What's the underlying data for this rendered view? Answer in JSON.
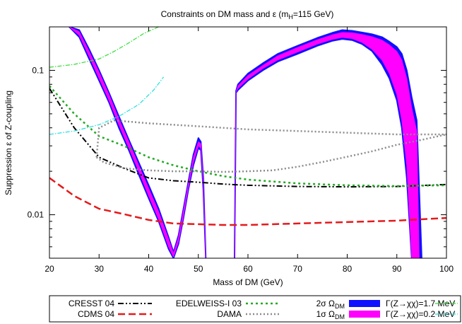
{
  "chart_data": {
    "type": "line",
    "title": "Constraints on DM mass and ε (m",
    "title_sub": "H",
    "title_tail": "=115 GeV)",
    "xlabel": "Mass of DM (GeV)",
    "ylabel": "Suppression ε of Z-coupling",
    "xlim": [
      20,
      100
    ],
    "ylim": [
      0.005,
      0.2
    ],
    "y_scale": "log",
    "grid": false,
    "x_ticks": [
      20,
      30,
      40,
      50,
      60,
      70,
      80,
      90,
      100
    ],
    "y_ticks": [
      {
        "value": 0.01,
        "label": "0.01"
      },
      {
        "value": 0.1,
        "label": "0.1"
      }
    ],
    "legend_position": "bottom",
    "legend": {
      "cresst": "CRESST 04",
      "cdms": "CDMS 04",
      "edelweiss": "EDELWEISS-I 03",
      "dama": "DAMA",
      "omega2_pre": "2σ  Ω",
      "omega1_pre": "1σ  Ω",
      "omega_sub": "DM",
      "gamma17": "Γ(Z→χχ)=1.7 MeV",
      "gamma02": "Γ(Z→χχ)=0.2 MeV"
    },
    "colors": {
      "cresst": "#000000",
      "cdms": "#e41a1c",
      "edelweiss": "#22aa22",
      "dama": "#8c8c8c",
      "omega2": "#1010ff",
      "omega1": "#ff00ff",
      "gamma17": "#33dd33",
      "gamma02": "#22dddd"
    },
    "series": [
      {
        "key": "cresst",
        "style": "dashdotdot",
        "x": [
          20,
          25,
          30,
          35,
          40,
          45,
          50,
          55,
          60,
          70,
          80,
          90,
          100
        ],
        "y": [
          0.075,
          0.04,
          0.025,
          0.021,
          0.018,
          0.0172,
          0.0168,
          0.0163,
          0.016,
          0.0157,
          0.0156,
          0.0157,
          0.0162
        ]
      },
      {
        "key": "cdms",
        "style": "dash",
        "x": [
          20,
          25,
          30,
          35,
          40,
          45,
          50,
          55,
          60,
          70,
          80,
          90,
          100
        ],
        "y": [
          0.018,
          0.0135,
          0.011,
          0.0101,
          0.0092,
          0.0087,
          0.0086,
          0.0085,
          0.0085,
          0.0087,
          0.0089,
          0.0091,
          0.0095
        ]
      },
      {
        "key": "edelweiss",
        "style": "dot",
        "x": [
          20,
          25,
          30,
          35,
          40,
          45,
          50,
          55,
          60,
          70,
          80,
          90,
          100
        ],
        "y": [
          0.078,
          0.05,
          0.035,
          0.03,
          0.025,
          0.022,
          0.02,
          0.0185,
          0.0175,
          0.0165,
          0.016,
          0.0158,
          0.016
        ]
      },
      {
        "key": "dama",
        "style": "dotted",
        "x": [
          29.5,
          30,
          33,
          40,
          50,
          60,
          70,
          80,
          90,
          100
        ],
        "y": [
          0.025,
          0.04,
          0.045,
          0.043,
          0.041,
          0.039,
          0.038,
          0.037,
          0.036,
          0.036
        ]
      },
      {
        "key": "dama",
        "style": "dotted",
        "x": [
          29.5,
          31,
          35,
          40,
          45,
          50,
          55,
          60,
          65,
          70,
          75,
          80,
          85,
          90,
          95,
          100
        ],
        "y": [
          0.025,
          0.023,
          0.021,
          0.0203,
          0.02,
          0.02,
          0.0198,
          0.02,
          0.0203,
          0.0215,
          0.0232,
          0.0252,
          0.0275,
          0.0305,
          0.033,
          0.036
        ]
      },
      {
        "key": "gamma17",
        "style": "dashdot",
        "x": [
          20,
          25,
          30,
          33,
          36,
          39,
          42
        ],
        "y": [
          0.105,
          0.11,
          0.12,
          0.135,
          0.155,
          0.18,
          0.2
        ]
      },
      {
        "key": "gamma02",
        "style": "dashdot",
        "x": [
          20,
          25,
          30,
          34,
          38,
          41,
          43
        ],
        "y": [
          0.036,
          0.038,
          0.042,
          0.048,
          0.058,
          0.073,
          0.09
        ]
      }
    ],
    "bands": [
      {
        "key": "omega2",
        "x": [
          24,
          26,
          28,
          30,
          32,
          34,
          36,
          38,
          40,
          42,
          44,
          45,
          46,
          47,
          48,
          49,
          50,
          50.5,
          51,
          51.5
        ],
        "lower": [
          0.2,
          0.17,
          0.12,
          0.085,
          0.06,
          0.04,
          0.028,
          0.019,
          0.013,
          0.009,
          0.0058,
          0.005,
          0.0063,
          0.0095,
          0.015,
          0.022,
          0.029,
          0.028,
          0.015,
          0.005
        ],
        "upper": [
          0.2,
          0.19,
          0.14,
          0.1,
          0.07,
          0.048,
          0.033,
          0.023,
          0.016,
          0.011,
          0.007,
          0.0055,
          0.0072,
          0.011,
          0.017,
          0.026,
          0.034,
          0.032,
          0.018,
          0.005
        ]
      },
      {
        "key": "omega1",
        "x": [
          24,
          26,
          28,
          30,
          32,
          34,
          36,
          38,
          40,
          42,
          44,
          45,
          46,
          47,
          48,
          49,
          50,
          50.5,
          51,
          51.5
        ],
        "lower": [
          0.2,
          0.175,
          0.125,
          0.088,
          0.062,
          0.042,
          0.029,
          0.02,
          0.0135,
          0.0093,
          0.006,
          0.0051,
          0.0065,
          0.0098,
          0.0155,
          0.023,
          0.03,
          0.029,
          0.016,
          0.005
        ],
        "upper": [
          0.2,
          0.185,
          0.135,
          0.097,
          0.068,
          0.046,
          0.032,
          0.022,
          0.0152,
          0.0105,
          0.0068,
          0.0054,
          0.007,
          0.0107,
          0.0165,
          0.025,
          0.032,
          0.031,
          0.017,
          0.005
        ]
      },
      {
        "key": "omega2",
        "x": [
          57.3,
          57.6,
          58,
          60,
          63,
          66,
          70,
          74,
          77,
          79,
          81,
          83,
          85,
          87,
          88.5,
          90,
          91,
          92,
          93,
          94,
          95
        ],
        "lower": [
          0.005,
          0.07,
          0.073,
          0.085,
          0.1,
          0.115,
          0.13,
          0.148,
          0.16,
          0.165,
          0.162,
          0.152,
          0.136,
          0.11,
          0.088,
          0.062,
          0.04,
          0.018,
          0.005,
          0.005,
          0.005
        ],
        "upper": [
          0.005,
          0.072,
          0.08,
          0.095,
          0.112,
          0.13,
          0.148,
          0.168,
          0.182,
          0.19,
          0.188,
          0.183,
          0.178,
          0.17,
          0.158,
          0.145,
          0.13,
          0.1,
          0.065,
          0.045,
          0.005
        ]
      },
      {
        "key": "omega1",
        "x": [
          57.3,
          57.6,
          58,
          60,
          63,
          66,
          70,
          74,
          77,
          79,
          81,
          83,
          85,
          87,
          88.5,
          90,
          91,
          92,
          93,
          94,
          94.5
        ],
        "lower": [
          0.005,
          0.071,
          0.075,
          0.087,
          0.103,
          0.118,
          0.134,
          0.152,
          0.164,
          0.169,
          0.166,
          0.156,
          0.14,
          0.118,
          0.095,
          0.068,
          0.045,
          0.022,
          0.005,
          0.005,
          0.005
        ],
        "upper": [
          0.005,
          0.071,
          0.078,
          0.092,
          0.108,
          0.126,
          0.144,
          0.163,
          0.176,
          0.183,
          0.182,
          0.177,
          0.171,
          0.162,
          0.15,
          0.135,
          0.118,
          0.088,
          0.055,
          0.038,
          0.005
        ]
      }
    ]
  }
}
